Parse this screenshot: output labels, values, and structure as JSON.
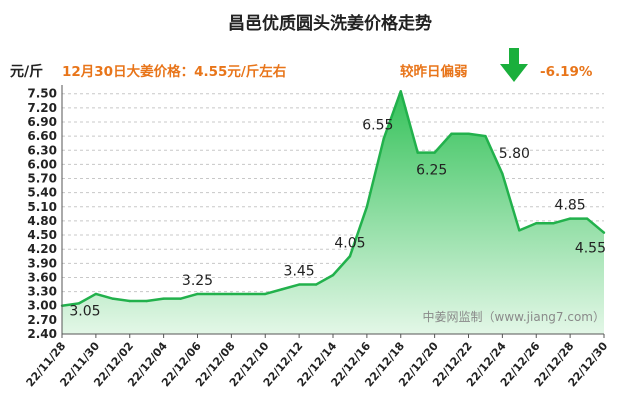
{
  "chart_data": {
    "type": "area",
    "title": "昌邑优质圆头洗姜价格走势",
    "ylabel": "元/斤",
    "ylim": [
      2.4,
      7.6
    ],
    "yticks": [
      "2.40",
      "2.70",
      "3.00",
      "3.30",
      "3.60",
      "3.90",
      "4.20",
      "4.50",
      "4.80",
      "5.10",
      "5.40",
      "5.70",
      "6.00",
      "6.30",
      "6.60",
      "6.90",
      "7.20",
      "7.50"
    ],
    "x": [
      "22/11/28",
      "22/11/29",
      "22/11/30",
      "22/12/01",
      "22/12/02",
      "22/12/03",
      "22/12/04",
      "22/12/05",
      "22/12/06",
      "22/12/07",
      "22/12/08",
      "22/12/09",
      "22/12/10",
      "22/12/11",
      "22/12/12",
      "22/12/13",
      "22/12/14",
      "22/12/15",
      "22/12/16",
      "22/12/17",
      "22/12/18",
      "22/12/19",
      "22/12/20",
      "22/12/21",
      "22/12/22",
      "22/12/23",
      "22/12/24",
      "22/12/25",
      "22/12/26",
      "22/12/27",
      "22/12/28",
      "22/12/29",
      "22/12/30"
    ],
    "xtick_labels": [
      "22/11/28",
      "22/11/30",
      "22/12/02",
      "22/12/04",
      "22/12/06",
      "22/12/08",
      "22/12/10",
      "22/12/12",
      "22/12/14",
      "22/12/16",
      "22/12/18",
      "22/12/20",
      "22/12/22",
      "22/12/24",
      "22/12/26",
      "22/12/28",
      "22/12/30"
    ],
    "values": [
      3.0,
      3.05,
      3.25,
      3.15,
      3.1,
      3.1,
      3.15,
      3.15,
      3.25,
      3.25,
      3.25,
      3.25,
      3.25,
      3.35,
      3.45,
      3.45,
      3.65,
      4.05,
      5.1,
      6.55,
      7.55,
      6.25,
      6.25,
      6.65,
      6.65,
      6.6,
      5.8,
      4.6,
      4.75,
      4.75,
      4.85,
      4.85,
      4.55
    ],
    "data_labels": [
      {
        "index": 1,
        "text": "3.05"
      },
      {
        "index": 8,
        "text": "3.25"
      },
      {
        "index": 14,
        "text": "3.45"
      },
      {
        "index": 17,
        "text": "4.05"
      },
      {
        "index": 19,
        "text": "6.55"
      },
      {
        "index": 21,
        "text": "6.25"
      },
      {
        "index": 26,
        "text": "5.80"
      },
      {
        "index": 30,
        "text": "4.85"
      },
      {
        "index": 32,
        "text": "4.55"
      }
    ],
    "grid": true,
    "fill_color": "#5dcf77",
    "line_color": "#22b14c"
  },
  "annotations": {
    "price_note": "12月30日大姜价格：4.55元/斤左右",
    "change_text": "较昨日偏弱",
    "change_value": "-6.19%",
    "arrow_icon": "down-arrow-icon",
    "arrow_color": "#1aaf3c",
    "note_color": "#e8751a"
  },
  "watermark": "中姜网监制（www.jiang7.com）"
}
